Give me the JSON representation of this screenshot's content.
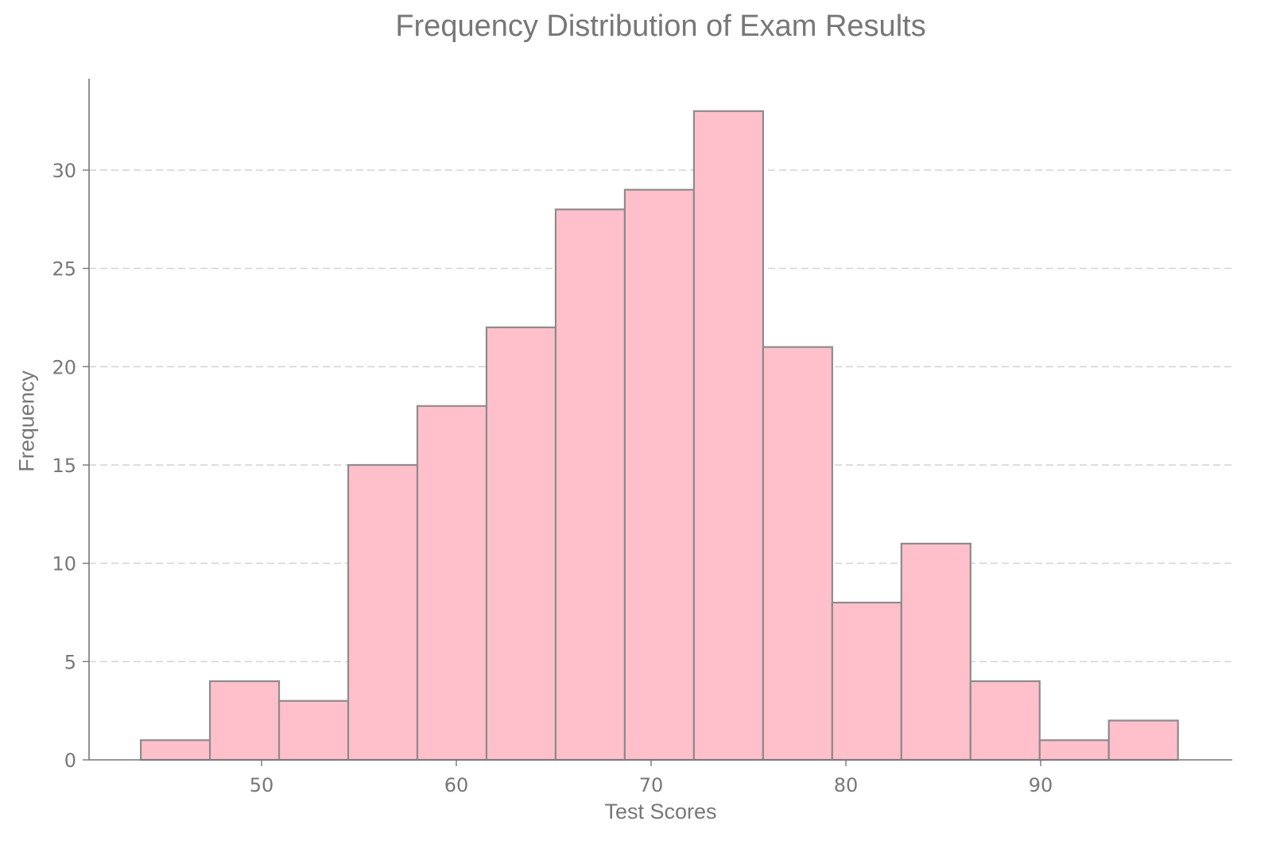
{
  "chart_data": {
    "type": "bar",
    "subtype": "histogram",
    "title": "Frequency Distribution of Exam Results",
    "xlabel": "Test Scores",
    "ylabel": "Frequency",
    "bin_edges": [
      43.8,
      47.35,
      50.9,
      54.45,
      58.0,
      61.55,
      65.1,
      68.65,
      72.2,
      75.75,
      79.3,
      82.85,
      86.4,
      89.95,
      93.5,
      97.05
    ],
    "values": [
      1,
      4,
      3,
      15,
      18,
      22,
      28,
      29,
      33,
      21,
      8,
      11,
      4,
      1,
      2
    ],
    "xticks": [
      50,
      60,
      70,
      80,
      90
    ],
    "yticks": [
      0,
      5,
      10,
      15,
      20,
      25,
      30
    ],
    "xlim": [
      41.2,
      99.9
    ],
    "ylim": [
      0,
      34.7
    ],
    "grid": {
      "axis": "y",
      "style": "dashed",
      "color": "#d3d3d3"
    },
    "legend": null,
    "colors": {
      "bar_fill": "#ffc0cb",
      "bar_edge": "#8c8c8c",
      "axis": "#777777",
      "text": "#777777"
    }
  }
}
